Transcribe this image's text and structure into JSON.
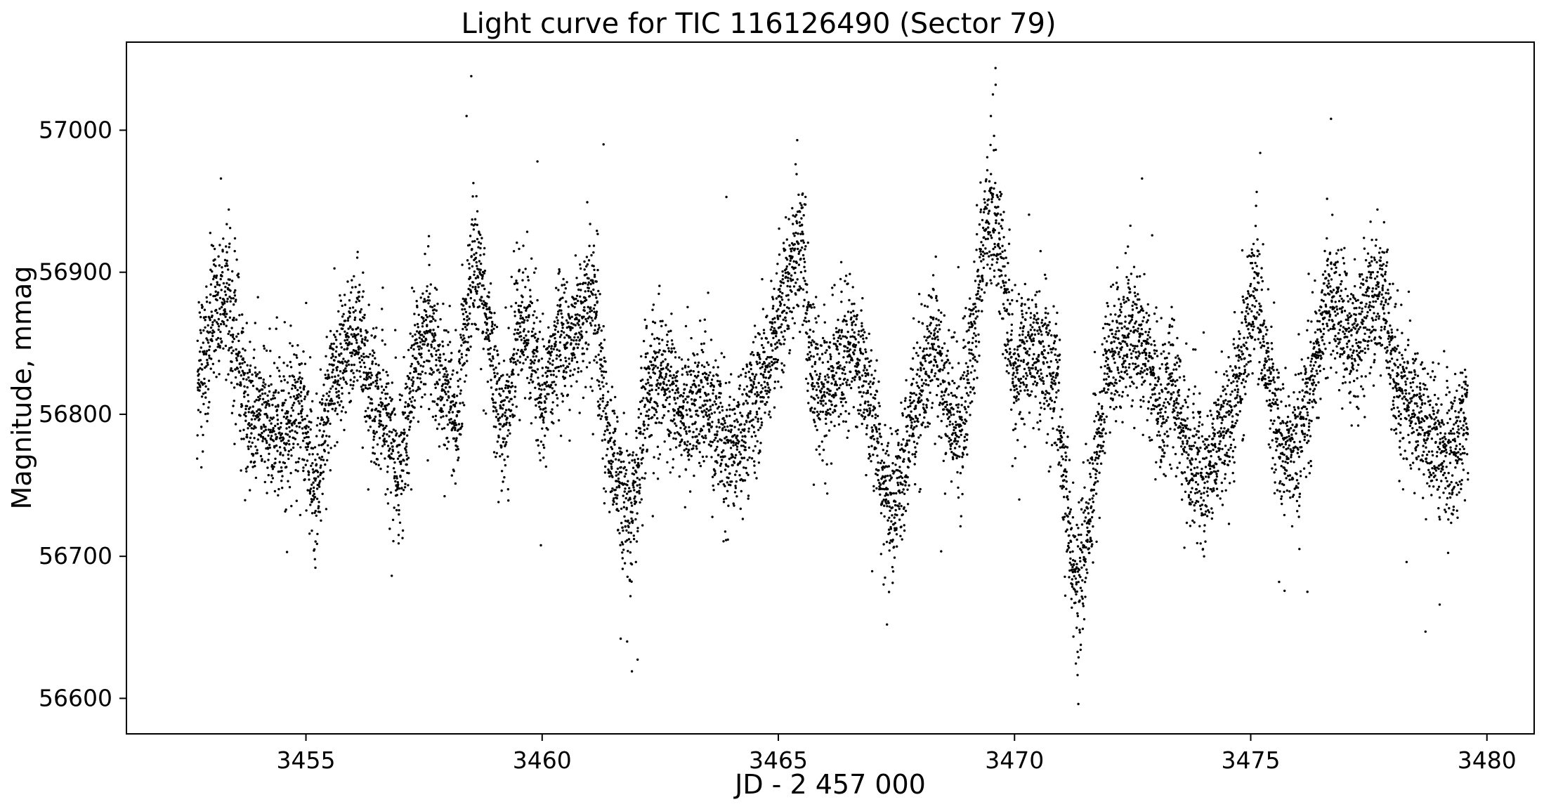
{
  "chart_data": {
    "type": "scatter",
    "title": "Light curve for TIC 116126490 (Sector 79)",
    "xlabel": "JD - 2 457 000",
    "ylabel": "Magnitude, mmag",
    "xlim": [
      3451.2,
      3481.0
    ],
    "ylim": [
      56575,
      57062
    ],
    "xticks": [
      3455,
      3460,
      3465,
      3470,
      3475,
      3480
    ],
    "yticks": [
      56600,
      56700,
      56800,
      56900,
      57000
    ],
    "marker_color": "#000000",
    "grid": false,
    "series": [
      {
        "trend": [
          [
            3452.7,
            56835
          ],
          [
            3452.9,
            56850
          ],
          [
            3453.1,
            56872
          ],
          [
            3453.3,
            56888
          ],
          [
            3453.5,
            56855
          ],
          [
            3453.7,
            56815
          ],
          [
            3453.9,
            56800
          ],
          [
            3454.2,
            56795
          ],
          [
            3454.5,
            56790
          ],
          [
            3454.8,
            56805
          ],
          [
            3455.0,
            56790
          ],
          [
            3455.2,
            56745
          ],
          [
            3455.5,
            56820
          ],
          [
            3455.8,
            56845
          ],
          [
            3456.1,
            56860
          ],
          [
            3456.4,
            56810
          ],
          [
            3456.7,
            56790
          ],
          [
            3457.0,
            56755
          ],
          [
            3457.3,
            56840
          ],
          [
            3457.6,
            56860
          ],
          [
            3457.9,
            56815
          ],
          [
            3458.2,
            56800
          ],
          [
            3458.5,
            56905
          ],
          [
            3458.8,
            56880
          ],
          [
            3459.0,
            56820
          ],
          [
            3459.2,
            56790
          ],
          [
            3459.5,
            56865
          ],
          [
            3459.8,
            56850
          ],
          [
            3460.0,
            56800
          ],
          [
            3460.3,
            56855
          ],
          [
            3460.6,
            56850
          ],
          [
            3460.9,
            56870
          ],
          [
            3461.1,
            56880
          ],
          [
            3461.4,
            56780
          ],
          [
            3461.7,
            56740
          ],
          [
            3461.9,
            56720
          ],
          [
            3462.2,
            56820
          ],
          [
            3462.5,
            56830
          ],
          [
            3462.8,
            56815
          ],
          [
            3463.1,
            56795
          ],
          [
            3463.4,
            56815
          ],
          [
            3463.7,
            56790
          ],
          [
            3464.0,
            56770
          ],
          [
            3464.3,
            56795
          ],
          [
            3464.6,
            56820
          ],
          [
            3464.9,
            56850
          ],
          [
            3465.2,
            56890
          ],
          [
            3465.5,
            56925
          ],
          [
            3465.7,
            56830
          ],
          [
            3466.0,
            56815
          ],
          [
            3466.3,
            56840
          ],
          [
            3466.6,
            56850
          ],
          [
            3466.9,
            56815
          ],
          [
            3467.2,
            56765
          ],
          [
            3467.4,
            56730
          ],
          [
            3467.7,
            56770
          ],
          [
            3468.0,
            56820
          ],
          [
            3468.3,
            56855
          ],
          [
            3468.6,
            56800
          ],
          [
            3468.9,
            56790
          ],
          [
            3469.2,
            56880
          ],
          [
            3469.4,
            56935
          ],
          [
            3469.6,
            56945
          ],
          [
            3469.8,
            56890
          ],
          [
            3470.0,
            56830
          ],
          [
            3470.3,
            56850
          ],
          [
            3470.6,
            56840
          ],
          [
            3470.9,
            56820
          ],
          [
            3471.1,
            56740
          ],
          [
            3471.3,
            56680
          ],
          [
            3471.5,
            56710
          ],
          [
            3471.7,
            56760
          ],
          [
            3471.9,
            56820
          ],
          [
            3472.2,
            56845
          ],
          [
            3472.5,
            56865
          ],
          [
            3472.8,
            56845
          ],
          [
            3473.1,
            56800
          ],
          [
            3473.4,
            56820
          ],
          [
            3473.7,
            56770
          ],
          [
            3474.0,
            56755
          ],
          [
            3474.3,
            56775
          ],
          [
            3474.6,
            56800
          ],
          [
            3474.9,
            56850
          ],
          [
            3475.1,
            56895
          ],
          [
            3475.4,
            56820
          ],
          [
            3475.7,
            56770
          ],
          [
            3476.0,
            56780
          ],
          [
            3476.3,
            56820
          ],
          [
            3476.6,
            56885
          ],
          [
            3476.9,
            56865
          ],
          [
            3477.2,
            56850
          ],
          [
            3477.5,
            56875
          ],
          [
            3477.8,
            56885
          ],
          [
            3478.1,
            56820
          ],
          [
            3478.4,
            56805
          ],
          [
            3478.7,
            56790
          ],
          [
            3479.0,
            56775
          ],
          [
            3479.3,
            56770
          ],
          [
            3479.6,
            56800
          ]
        ],
        "n_points": 9200,
        "scatter_mmag": 24,
        "outliers": [
          [
            3458.5,
            57038
          ],
          [
            3458.4,
            57010
          ],
          [
            3469.6,
            57032
          ],
          [
            3469.5,
            57010
          ],
          [
            3476.7,
            57008
          ],
          [
            3471.35,
            56596
          ],
          [
            3461.9,
            56619
          ],
          [
            3461.8,
            56640
          ],
          [
            3467.3,
            56652
          ],
          [
            3478.7,
            56647
          ],
          [
            3479.0,
            56666
          ],
          [
            3455.2,
            56692
          ],
          [
            3459.9,
            56978
          ],
          [
            3463.9,
            56953
          ],
          [
            3465.4,
            56993
          ],
          [
            3461.3,
            56990
          ],
          [
            3453.2,
            56966
          ],
          [
            3472.7,
            56966
          ],
          [
            3475.2,
            56984
          ],
          [
            3454.6,
            56703
          ],
          [
            3475.6,
            56682
          ],
          [
            3476.2,
            56675
          ],
          [
            3478.3,
            56696
          ],
          [
            3470.1,
            56740
          ]
        ]
      }
    ]
  }
}
